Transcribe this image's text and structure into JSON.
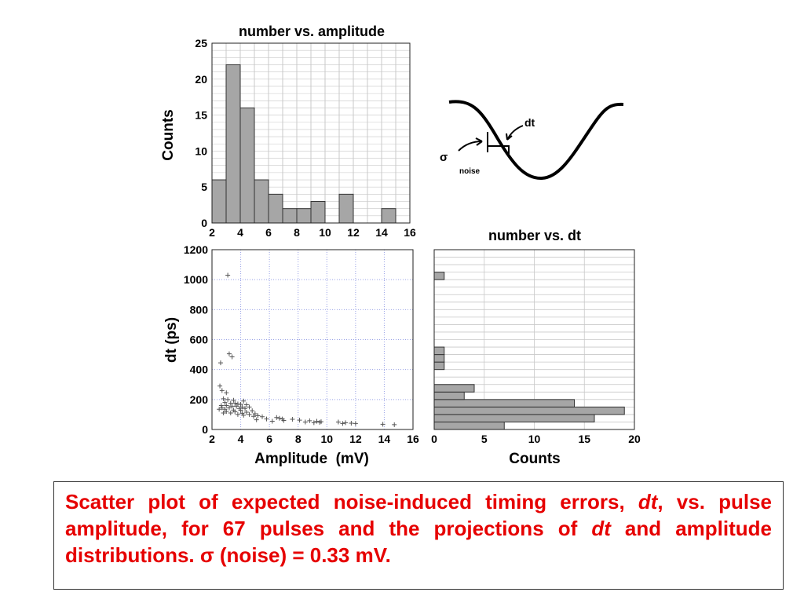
{
  "chart_data": [
    {
      "type": "bar",
      "title": "number vs. amplitude",
      "ylabel": "Counts",
      "xlim": [
        2,
        16
      ],
      "ylim": [
        0,
        25
      ],
      "xticks": [
        "2",
        "4",
        "6",
        "8",
        "10",
        "12",
        "14",
        "16"
      ],
      "yticks": [
        "0",
        "5",
        "10",
        "15",
        "20",
        "25"
      ],
      "bin_width": 1,
      "bins": [
        {
          "x0": 2,
          "count": 6
        },
        {
          "x0": 3,
          "count": 22
        },
        {
          "x0": 4,
          "count": 16
        },
        {
          "x0": 5,
          "count": 6
        },
        {
          "x0": 6,
          "count": 4
        },
        {
          "x0": 7,
          "count": 2
        },
        {
          "x0": 8,
          "count": 2
        },
        {
          "x0": 9,
          "count": 3
        },
        {
          "x0": 10,
          "count": 0
        },
        {
          "x0": 11,
          "count": 4
        },
        {
          "x0": 12,
          "count": 0
        },
        {
          "x0": 13,
          "count": 0
        },
        {
          "x0": 14,
          "count": 2
        },
        {
          "x0": 15,
          "count": 0
        }
      ],
      "grid": true
    },
    {
      "type": "scatter",
      "title": "",
      "xlabel": "Amplitude  (mV)",
      "ylabel": "dt (ps)",
      "xlim": [
        2,
        16
      ],
      "ylim": [
        0,
        1200
      ],
      "xticks": [
        "2",
        "4",
        "6",
        "8",
        "10",
        "12",
        "14",
        "16"
      ],
      "yticks": [
        "0",
        "200",
        "400",
        "600",
        "800",
        "1000",
        "1200"
      ],
      "marker": "+",
      "grid": true,
      "points": [
        [
          3.1,
          1030
        ],
        [
          3.2,
          505
        ],
        [
          3.4,
          485
        ],
        [
          2.6,
          445
        ],
        [
          2.55,
          290
        ],
        [
          2.7,
          260
        ],
        [
          3.0,
          245
        ],
        [
          2.8,
          205
        ],
        [
          3.1,
          200
        ],
        [
          3.5,
          195
        ],
        [
          4.2,
          190
        ],
        [
          2.9,
          180
        ],
        [
          3.3,
          175
        ],
        [
          3.6,
          175
        ],
        [
          3.8,
          170
        ],
        [
          4.0,
          168
        ],
        [
          4.4,
          165
        ],
        [
          2.65,
          160
        ],
        [
          3.0,
          160
        ],
        [
          3.4,
          155
        ],
        [
          3.7,
          155
        ],
        [
          4.1,
          150
        ],
        [
          4.6,
          150
        ],
        [
          2.7,
          145
        ],
        [
          3.2,
          145
        ],
        [
          3.9,
          140
        ],
        [
          4.3,
          140
        ],
        [
          2.5,
          135
        ],
        [
          2.9,
          135
        ],
        [
          3.5,
          130
        ],
        [
          4.0,
          128
        ],
        [
          4.8,
          125
        ],
        [
          3.0,
          120
        ],
        [
          3.6,
          118
        ],
        [
          4.4,
          115
        ],
        [
          2.8,
          110
        ],
        [
          3.3,
          110
        ],
        [
          4.1,
          108
        ],
        [
          5.0,
          105
        ],
        [
          3.8,
          100
        ],
        [
          4.6,
          100
        ],
        [
          4.2,
          95
        ],
        [
          5.2,
          92
        ],
        [
          4.9,
          88
        ],
        [
          5.5,
          85
        ],
        [
          6.5,
          80
        ],
        [
          6.7,
          75
        ],
        [
          5.8,
          70
        ],
        [
          6.9,
          70
        ],
        [
          7.6,
          68
        ],
        [
          5.1,
          65
        ],
        [
          8.1,
          62
        ],
        [
          7.0,
          60
        ],
        [
          8.8,
          58
        ],
        [
          9.3,
          55
        ],
        [
          6.2,
          55
        ],
        [
          9.6,
          52
        ],
        [
          8.5,
          50
        ],
        [
          9.5,
          48
        ],
        [
          10.8,
          50
        ],
        [
          11.3,
          45
        ],
        [
          11.7,
          42
        ],
        [
          11.1,
          40
        ],
        [
          13.9,
          35
        ],
        [
          14.7,
          32
        ],
        [
          9.1,
          45
        ],
        [
          12.0,
          40
        ]
      ]
    },
    {
      "type": "bar",
      "orientation": "horizontal",
      "title": "number vs. dt",
      "xlabel": "Counts",
      "xlim": [
        0,
        20
      ],
      "ylim": [
        0,
        1200
      ],
      "xticks": [
        "0",
        "5",
        "10",
        "15",
        "20"
      ],
      "bin_width": 50,
      "bins": [
        {
          "y0": 0,
          "count": 7
        },
        {
          "y0": 50,
          "count": 16
        },
        {
          "y0": 100,
          "count": 19
        },
        {
          "y0": 150,
          "count": 14
        },
        {
          "y0": 200,
          "count": 3
        },
        {
          "y0": 250,
          "count": 4
        },
        {
          "y0": 400,
          "count": 1
        },
        {
          "y0": 450,
          "count": 1
        },
        {
          "y0": 500,
          "count": 1
        },
        {
          "y0": 1000,
          "count": 1
        }
      ],
      "grid": true
    }
  ],
  "diagram": {
    "dt_label": "dt",
    "sigma_label": "σ",
    "noise_label": "noise"
  },
  "caption": {
    "part1": "Scatter plot of expected noise-induced timing errors, ",
    "dt": "dt",
    "part2": ", vs. pulse amplitude, for 67 pulses and the projections of ",
    "dt2": "dt",
    "part3": " and amplitude distributions.  σ (noise) = 0.33 mV.",
    "color": "#e60000"
  },
  "colors": {
    "bar_fill": "#a6a6a6",
    "grid": "#c8c8c8",
    "scatter_grid": "#9aa3e6",
    "marker": "#555555"
  }
}
